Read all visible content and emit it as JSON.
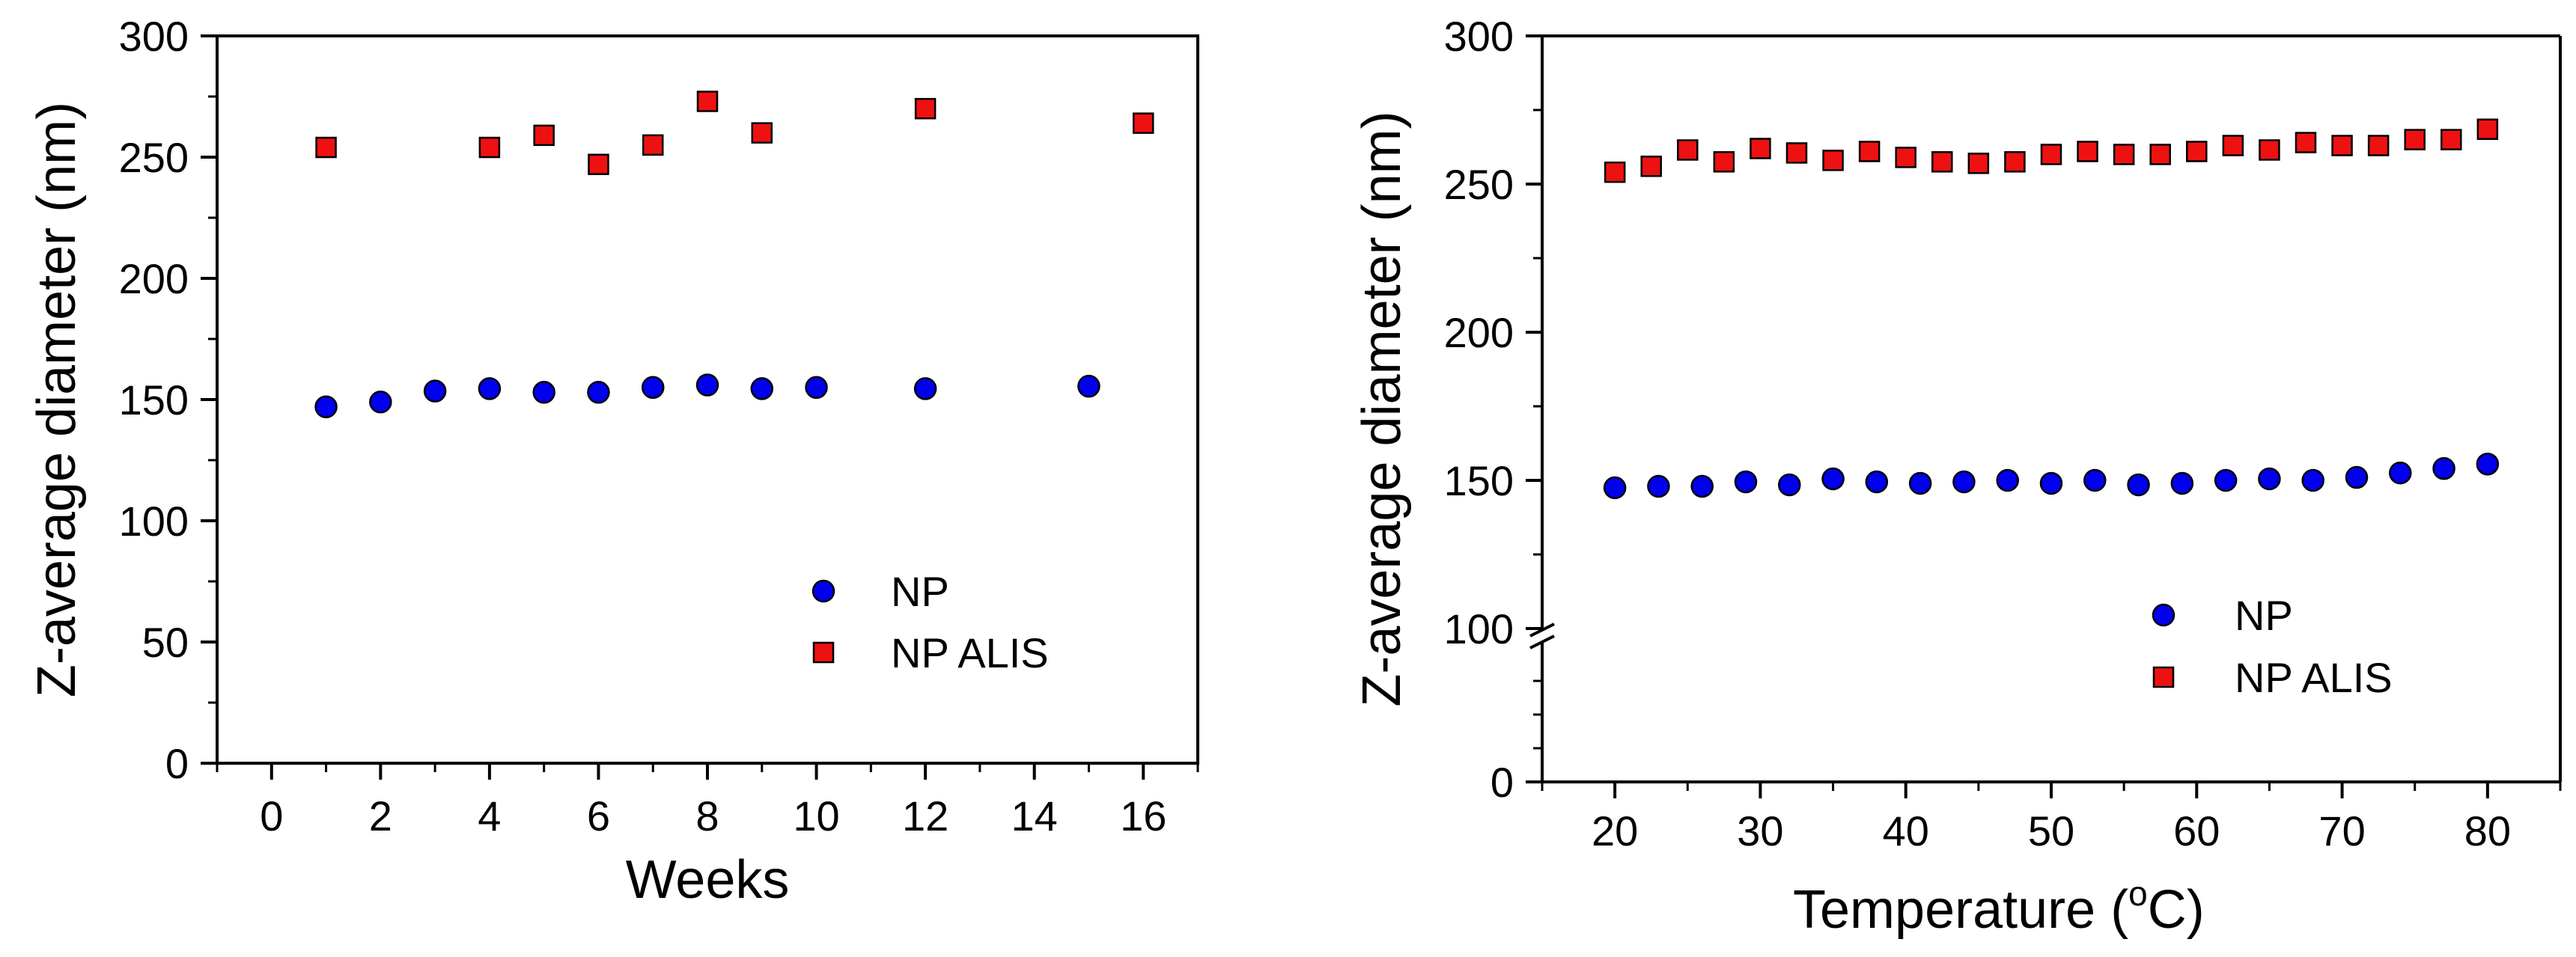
{
  "chart_data": [
    {
      "type": "scatter",
      "xlabel": "Weeks",
      "ylabel": "Z-average diameter (nm)",
      "xlim": [
        -1,
        17
      ],
      "ylim": [
        0,
        300
      ],
      "x_ticks": [
        0,
        2,
        4,
        6,
        8,
        10,
        12,
        14,
        16
      ],
      "y_ticks": [
        0,
        50,
        100,
        150,
        200,
        250,
        300
      ],
      "legend_position": "lower-right",
      "series": [
        {
          "name": "NP",
          "marker": "circle",
          "color": "#0000ee",
          "x": [
            1,
            2,
            3,
            4,
            5,
            6,
            7,
            8,
            9,
            10,
            12,
            15
          ],
          "y": [
            147,
            149,
            153.5,
            154.5,
            153,
            153,
            155,
            156,
            154.5,
            155,
            154.5,
            155.5
          ]
        },
        {
          "name": "NP ALIS",
          "marker": "square",
          "color": "#ee1111",
          "x": [
            1,
            4,
            5,
            6,
            7,
            8,
            9,
            12,
            16
          ],
          "y": [
            254,
            254,
            259,
            247,
            255,
            273,
            260,
            270,
            264
          ]
        }
      ]
    },
    {
      "type": "scatter",
      "xlabel": "Temperature (",
      "xlabel_degree": "o",
      "xlabel_unit": "C)",
      "ylabel": "Z-average diameter (nm)",
      "xlim": [
        15,
        85
      ],
      "y_ticks": [
        0,
        100,
        150,
        200,
        250,
        300
      ],
      "x_ticks": [
        20,
        30,
        40,
        50,
        60,
        70,
        80
      ],
      "y_axis_break": {
        "lower_segment": [
          0,
          100
        ],
        "upper_segment": [
          100,
          300
        ]
      },
      "legend_position": "lower-right",
      "series": [
        {
          "name": "NP",
          "marker": "circle",
          "color": "#0000ee",
          "x": [
            20,
            23,
            26,
            29,
            32,
            35,
            38,
            41,
            44,
            47,
            50,
            53,
            56,
            59,
            62,
            65,
            68,
            71,
            74,
            77,
            80
          ],
          "y": [
            147.5,
            148,
            148,
            149.5,
            148.5,
            150.5,
            149.5,
            149,
            149.5,
            150,
            149,
            150,
            148.5,
            149,
            150,
            150.5,
            150,
            151,
            152.5,
            154,
            155.5
          ]
        },
        {
          "name": "NP ALIS",
          "marker": "square",
          "color": "#ee1111",
          "x": [
            20,
            22.5,
            25,
            27.5,
            30,
            32.5,
            35,
            37.5,
            40,
            42.5,
            45,
            47.5,
            50,
            52.5,
            55,
            57.5,
            60,
            62.5,
            65,
            67.5,
            70,
            72.5,
            75,
            77.5,
            80
          ],
          "y": [
            254,
            256,
            261.5,
            257.5,
            262,
            260.5,
            258,
            261,
            259,
            257.5,
            257,
            257.5,
            260,
            261,
            260,
            260,
            261,
            263,
            261.5,
            264,
            263,
            263,
            265,
            265,
            268.5
          ]
        }
      ]
    }
  ]
}
